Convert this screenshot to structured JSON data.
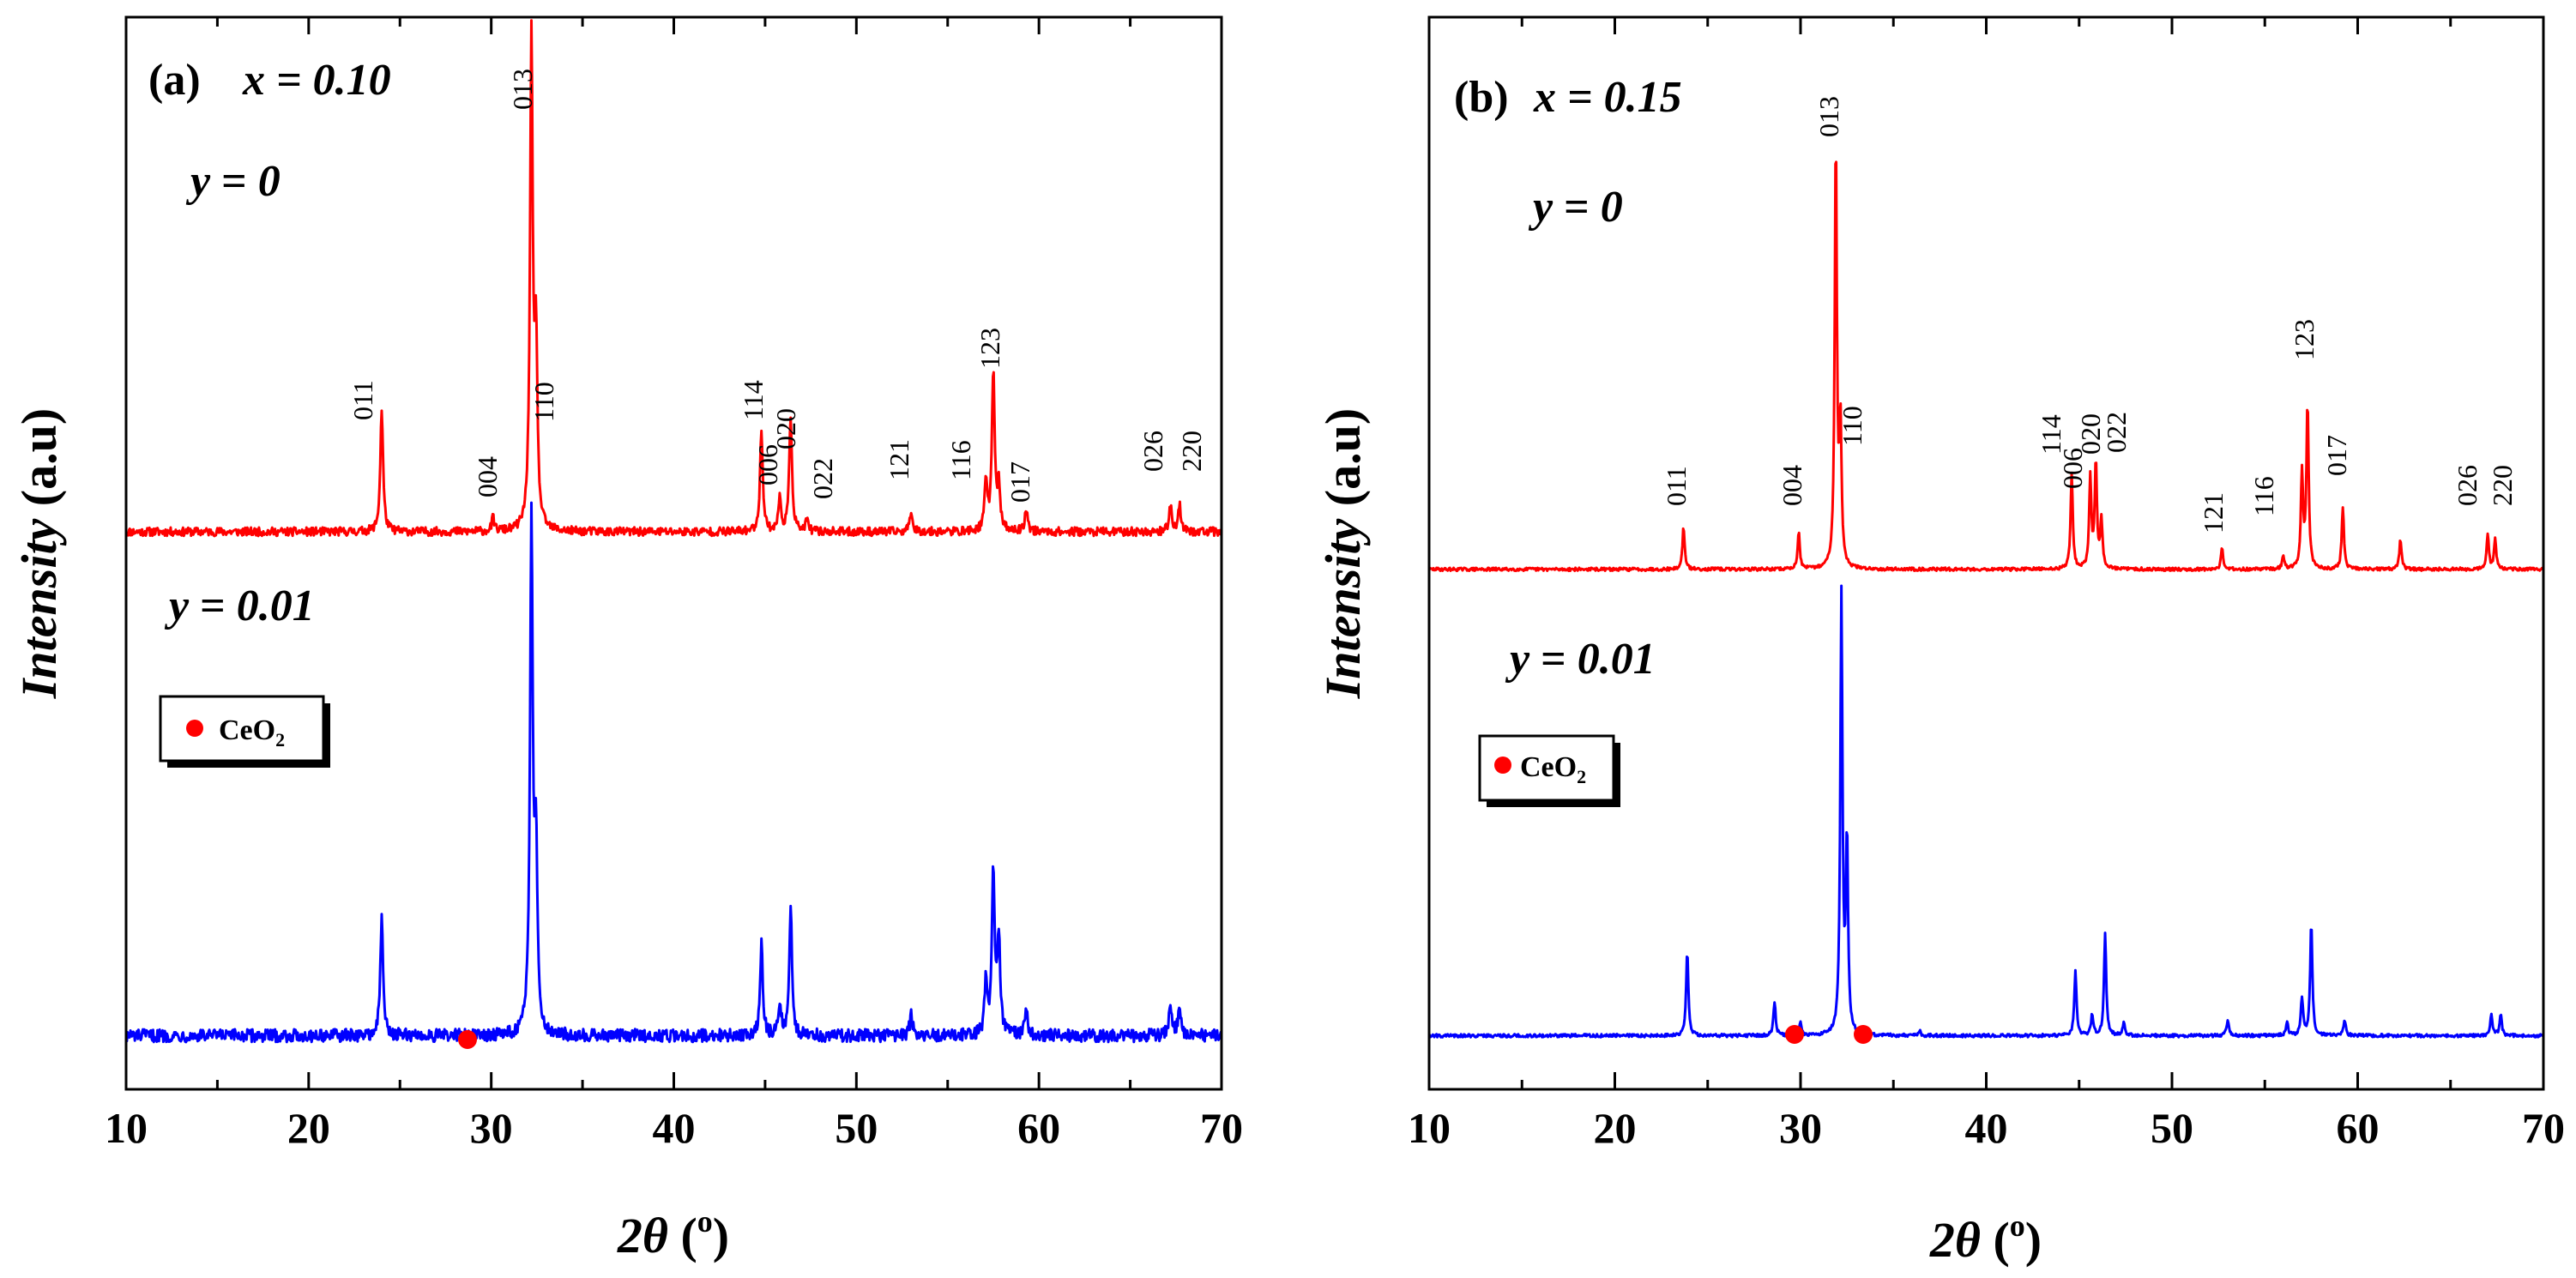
{
  "colors": {
    "pattern_y0": "#ff0000",
    "pattern_y001": "#0000ff",
    "impurity_marker": "#ff0000",
    "frame": "#000000",
    "text": "#000000",
    "background": "#ffffff"
  },
  "chart_data": [
    {
      "type": "line",
      "panel_label": "(a)",
      "composition": "x = 0.10",
      "xlabel": "2θ (°)",
      "xlabel_parts": {
        "symbol": "2θ",
        "open": "(",
        "sup": "o",
        "close": ")"
      },
      "ylabel": "Intensity (a.u)",
      "ylabel_parts": {
        "word": "Intensity",
        "unit": "(a.u)"
      },
      "xlim": [
        10,
        70
      ],
      "x_major_ticks": [
        10,
        20,
        30,
        40,
        50,
        60,
        70
      ],
      "x_tick_labels": [
        "10",
        "20",
        "30",
        "40",
        "50",
        "60",
        "70"
      ],
      "legend": {
        "label": "CeO",
        "subscript": "2",
        "placement": "middle-left"
      },
      "series": [
        {
          "name": "y = 0",
          "color": "#ff0000",
          "baseline": 0.52,
          "noise": 0.004,
          "peaks": [
            {
              "two_theta": 24.0,
              "height": 0.115,
              "hkl": "011"
            },
            {
              "two_theta": 30.1,
              "height": 0.012,
              "hkl": "004"
            },
            {
              "two_theta": 32.2,
              "height": 0.455,
              "hkl": "013"
            },
            {
              "two_theta": 32.45,
              "height": 0.17,
              "hkl": "110"
            },
            {
              "two_theta": 44.8,
              "height": 0.095,
              "hkl": "114"
            },
            {
              "two_theta": 45.8,
              "height": 0.03,
              "hkl": "006"
            },
            {
              "two_theta": 46.4,
              "height": 0.108,
              "hkl": "020"
            },
            {
              "two_theta": 47.3,
              "height": 0.01,
              "hkl": "022"
            },
            {
              "two_theta": 53.0,
              "height": 0.02,
              "hkl": "121"
            },
            {
              "two_theta": 57.1,
              "height": 0.045,
              "hkl": "116"
            },
            {
              "two_theta": 57.5,
              "height": 0.15,
              "hkl": "123"
            },
            {
              "two_theta": 57.8,
              "height": 0.04,
              "hkl": ""
            },
            {
              "two_theta": 59.3,
              "height": 0.022,
              "hkl": "017"
            },
            {
              "two_theta": 67.2,
              "height": 0.025,
              "hkl": "026"
            },
            {
              "two_theta": 67.7,
              "height": 0.025,
              "hkl": "220"
            }
          ],
          "label_text": "y = 0",
          "label_parts": {
            "var": "y",
            "value": "0"
          }
        },
        {
          "name": "y = 0.01",
          "color": "#0000ff",
          "baseline": 0.05,
          "noise": 0.006,
          "peaks": [
            {
              "two_theta": 24.0,
              "height": 0.11
            },
            {
              "two_theta": 32.2,
              "height": 0.48
            },
            {
              "two_theta": 32.45,
              "height": 0.17
            },
            {
              "two_theta": 44.8,
              "height": 0.085
            },
            {
              "two_theta": 45.8,
              "height": 0.03
            },
            {
              "two_theta": 46.4,
              "height": 0.12
            },
            {
              "two_theta": 53.0,
              "height": 0.02
            },
            {
              "two_theta": 57.1,
              "height": 0.05
            },
            {
              "two_theta": 57.5,
              "height": 0.15
            },
            {
              "two_theta": 57.8,
              "height": 0.09
            },
            {
              "two_theta": 59.3,
              "height": 0.025
            },
            {
              "two_theta": 67.2,
              "height": 0.03
            },
            {
              "two_theta": 67.7,
              "height": 0.03
            }
          ],
          "label_text": "y = 0.01",
          "label_parts": {
            "var": "y",
            "value": "0.01"
          }
        }
      ],
      "impurity_markers": [
        {
          "two_theta": 28.8,
          "intensity": 0.085,
          "phase": "CeO2"
        }
      ]
    },
    {
      "type": "line",
      "panel_label": "(b)",
      "composition": "x = 0.15",
      "xlabel": "2θ (°)",
      "xlabel_parts": {
        "symbol": "2θ",
        "open": "(",
        "sup": "o",
        "close": ")"
      },
      "ylabel": "Intensity (a.u)",
      "ylabel_parts": {
        "word": "Intensity",
        "unit": "(a.u)"
      },
      "xlim": [
        10,
        70
      ],
      "x_major_ticks": [
        10,
        20,
        30,
        40,
        50,
        60,
        70
      ],
      "x_tick_labels": [
        "10",
        "20",
        "30",
        "40",
        "50",
        "60",
        "70"
      ],
      "legend": {
        "label": "CeO",
        "subscript": "2",
        "placement": "middle-left"
      },
      "series": [
        {
          "name": "y = 0",
          "color": "#ff0000",
          "baseline": 0.485,
          "noise": 0.0015,
          "peaks": [
            {
              "two_theta": 23.7,
              "height": 0.04,
              "hkl": "011"
            },
            {
              "two_theta": 29.9,
              "height": 0.035,
              "hkl": "004"
            },
            {
              "two_theta": 31.9,
              "height": 0.4,
              "hkl": "013"
            },
            {
              "two_theta": 32.15,
              "height": 0.13,
              "hkl": "110"
            },
            {
              "two_theta": 44.6,
              "height": 0.09,
              "hkl": "114"
            },
            {
              "two_theta": 45.6,
              "height": 0.085,
              "hkl": "006"
            },
            {
              "two_theta": 45.9,
              "height": 0.1,
              "hkl": "020"
            },
            {
              "two_theta": 46.2,
              "height": 0.045,
              "hkl": "022"
            },
            {
              "two_theta": 52.7,
              "height": 0.02,
              "hkl": "121"
            },
            {
              "two_theta": 56.0,
              "height": 0.012,
              "hkl": "116"
            },
            {
              "two_theta": 57.0,
              "height": 0.09,
              "hkl": ""
            },
            {
              "two_theta": 57.3,
              "height": 0.155,
              "hkl": "123"
            },
            {
              "two_theta": 59.2,
              "height": 0.058,
              "hkl": "017"
            },
            {
              "two_theta": 62.3,
              "height": 0.028,
              "hkl": ""
            },
            {
              "two_theta": 67.0,
              "height": 0.033,
              "hkl": "026"
            },
            {
              "two_theta": 67.4,
              "height": 0.028,
              "hkl": "220"
            }
          ],
          "label_text": "y = 0",
          "label_parts": {
            "var": "y",
            "value": "0"
          }
        },
        {
          "name": "y = 0.01",
          "color": "#0000ff",
          "baseline": 0.05,
          "noise": 0.0015,
          "peaks": [
            {
              "two_theta": 23.9,
              "height": 0.08
            },
            {
              "two_theta": 28.6,
              "height": 0.032
            },
            {
              "two_theta": 30.0,
              "height": 0.012
            },
            {
              "two_theta": 32.2,
              "height": 0.41
            },
            {
              "two_theta": 32.5,
              "height": 0.18
            },
            {
              "two_theta": 36.4,
              "height": 0.005
            },
            {
              "two_theta": 44.8,
              "height": 0.06
            },
            {
              "two_theta": 45.7,
              "height": 0.02
            },
            {
              "two_theta": 46.4,
              "height": 0.095
            },
            {
              "two_theta": 47.4,
              "height": 0.012
            },
            {
              "two_theta": 53.0,
              "height": 0.015
            },
            {
              "two_theta": 56.2,
              "height": 0.012
            },
            {
              "two_theta": 57.0,
              "height": 0.035
            },
            {
              "two_theta": 57.5,
              "height": 0.105
            },
            {
              "two_theta": 59.3,
              "height": 0.015
            },
            {
              "two_theta": 67.2,
              "height": 0.02
            },
            {
              "two_theta": 67.7,
              "height": 0.02
            }
          ],
          "label_text": "y = 0.01",
          "label_parts": {
            "var": "y",
            "value": "0.01"
          }
        }
      ],
      "impurity_markers": [
        {
          "two_theta": 29.8,
          "intensity": 0.085,
          "phase": "CeO2"
        },
        {
          "two_theta": 33.5,
          "intensity": 0.085,
          "phase": "CeO2"
        }
      ]
    }
  ]
}
